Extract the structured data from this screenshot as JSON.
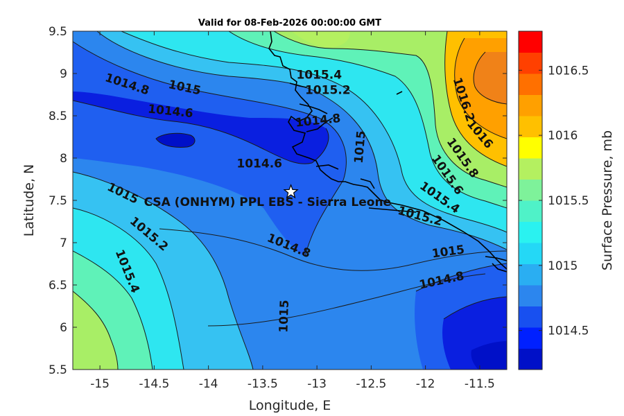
{
  "title": "Valid for 08-Feb-2026 00:00:00 GMT",
  "colors": {
    "field": {
      "low": "#0a1fe0",
      "mid_low": "#1f5ff0",
      "mid": "#2c86ee",
      "mid_high": "#36c2f2",
      "cyan": "#2ee6f0",
      "green_cyan": "#5ff2b8",
      "green": "#a8ee66",
      "orange": "#f7a21a",
      "orange_dark": "#f08218"
    },
    "contour_line": "#1a1a1a",
    "coastline": "#000000"
  },
  "site": {
    "label": "CSA (ONHYM) PPL EBS  - Sierra Leone",
    "icon": "white-star-icon",
    "lon": -13.24,
    "lat": 7.6
  },
  "contour_labels": [
    {
      "text": "1014.8",
      "lon": -14.75,
      "lat": 8.87,
      "rot": 18
    },
    {
      "text": "1015",
      "lon": -14.22,
      "lat": 8.83,
      "rot": 12
    },
    {
      "text": "1014.6",
      "lon": -14.35,
      "lat": 8.55,
      "rot": 6
    },
    {
      "text": "1015.4",
      "lon": -12.98,
      "lat": 8.98,
      "rot": 0
    },
    {
      "text": "1015.2",
      "lon": -12.9,
      "lat": 8.8,
      "rot": 0
    },
    {
      "text": "1014.8",
      "lon": -12.99,
      "lat": 8.44,
      "rot": -6
    },
    {
      "text": "1015",
      "lon": -12.6,
      "lat": 8.13,
      "rot": -85
    },
    {
      "text": "1014.6",
      "lon": -13.53,
      "lat": 7.93,
      "rot": 0
    },
    {
      "text": "1016.2",
      "lon": -11.65,
      "lat": 8.69,
      "rot": 72
    },
    {
      "text": "1016",
      "lon": -11.5,
      "lat": 8.28,
      "rot": 50
    },
    {
      "text": "1015.8",
      "lon": -11.66,
      "lat": 8.0,
      "rot": 55
    },
    {
      "text": "1015.6",
      "lon": -11.8,
      "lat": 7.8,
      "rot": 55
    },
    {
      "text": "1015.4",
      "lon": -11.87,
      "lat": 7.53,
      "rot": 35
    },
    {
      "text": "1015.2",
      "lon": -12.05,
      "lat": 7.31,
      "rot": 15
    },
    {
      "text": "1015",
      "lon": -11.79,
      "lat": 6.89,
      "rot": -8
    },
    {
      "text": "1014.8",
      "lon": -11.85,
      "lat": 6.55,
      "rot": -12
    },
    {
      "text": "1015",
      "lon": -14.79,
      "lat": 7.58,
      "rot": 26
    },
    {
      "text": "1015.2",
      "lon": -14.55,
      "lat": 7.1,
      "rot": 40
    },
    {
      "text": "1015.4",
      "lon": -14.75,
      "lat": 6.66,
      "rot": 68
    },
    {
      "text": "1014.8",
      "lon": -13.26,
      "lat": 6.96,
      "rot": 22
    },
    {
      "text": "1015",
      "lon": -13.3,
      "lat": 6.13,
      "rot": -88
    }
  ],
  "axes": {
    "xlabel": "Longitude, E",
    "ylabel": "Latitude, N",
    "xlim": [
      -15.25,
      -11.25
    ],
    "ylim": [
      5.5,
      9.5
    ],
    "xticks": [
      -15,
      -14.5,
      -14,
      -13.5,
      -13,
      -12.5,
      -12,
      -11.5
    ],
    "xtick_labels": [
      "-15",
      "-14.5",
      "-14",
      "-13.5",
      "-13",
      "-12.5",
      "-12",
      "-11.5"
    ],
    "yticks": [
      5.5,
      6,
      6.5,
      7,
      7.5,
      8,
      8.5,
      9,
      9.5
    ],
    "ytick_labels": [
      "5.5",
      "6",
      "6.5",
      "7",
      "7.5",
      "8",
      "8.5",
      "9",
      "9.5"
    ]
  },
  "colorbar": {
    "label": "Surface Pressure, mb",
    "range": [
      1014.2,
      1016.8
    ],
    "ticks": [
      1014.5,
      1015,
      1015.5,
      1016,
      1016.5
    ],
    "tick_labels": [
      "1014.5",
      "1015",
      "1015.5",
      "1016",
      "1016.5"
    ],
    "colors": [
      "#0010c8",
      "#0020ff",
      "#1850f0",
      "#2c86ee",
      "#2aaef2",
      "#24d8f6",
      "#2af2f0",
      "#4ff2c8",
      "#7ef29a",
      "#b4f060",
      "#ffff00",
      "#ffc000",
      "#ffa000",
      "#ff7000",
      "#ff4000",
      "#ff0000"
    ]
  }
}
